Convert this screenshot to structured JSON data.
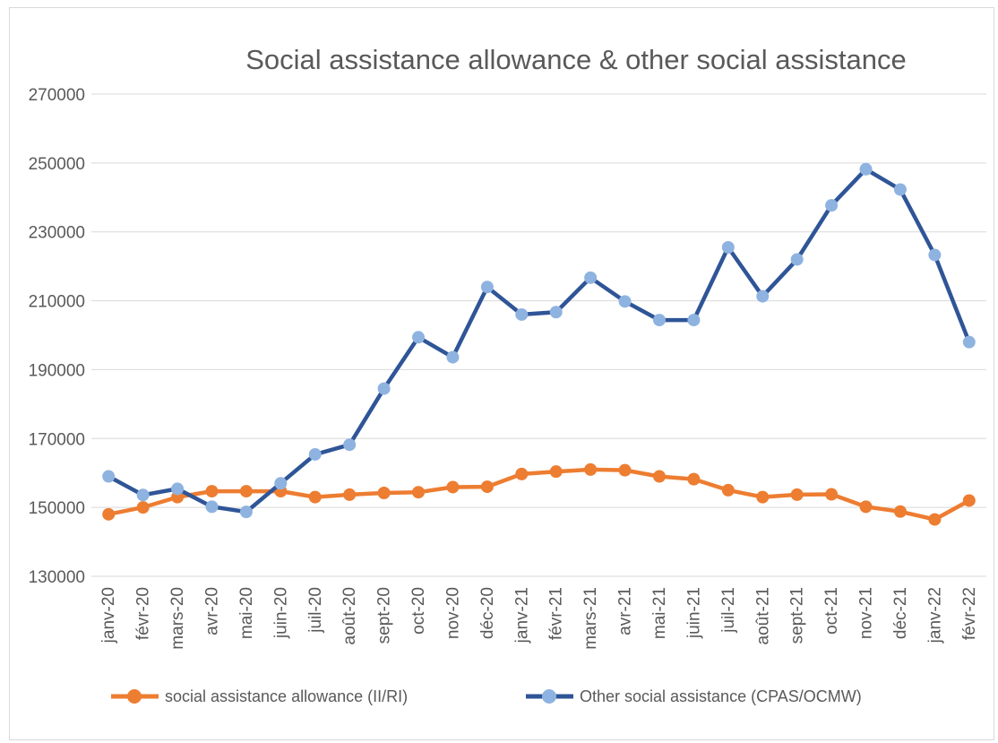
{
  "chart_data": {
    "type": "line",
    "title": "Social assistance allowance & other social assistance",
    "categories": [
      "janv-20",
      "févr-20",
      "mars-20",
      "avr-20",
      "mai-20",
      "juin-20",
      "juil-20",
      "août-20",
      "sept-20",
      "oct-20",
      "nov-20",
      "déc-20",
      "janv-21",
      "févr-21",
      "mars-21",
      "avr-21",
      "mai-21",
      "juin-21",
      "juil-21",
      "août-21",
      "sept-21",
      "oct-21",
      "nov-21",
      "déc-21",
      "janv-22",
      "févr-22"
    ],
    "y_ticks": [
      "130000",
      "150000",
      "170000",
      "190000",
      "210000",
      "230000",
      "250000",
      "270000"
    ],
    "ylim": [
      130000,
      270000
    ],
    "grid": true,
    "legend_position": "bottom",
    "series": [
      {
        "name": "social assistance allowance (II/RI)",
        "line_color": "#ed7d31",
        "marker_color": "#ed7d31",
        "values": [
          148000,
          150000,
          153000,
          154700,
          154700,
          154700,
          153000,
          153700,
          154200,
          154400,
          155900,
          156000,
          159700,
          160400,
          161000,
          160800,
          159000,
          158200,
          155000,
          153000,
          153700,
          153800,
          150200,
          148800,
          146500,
          152000
        ]
      },
      {
        "name": "Other social assistance (CPAS/OCMW)",
        "line_color": "#2f5597",
        "marker_color": "#8fb3e0",
        "values": [
          159000,
          153600,
          155400,
          150200,
          148700,
          157000,
          165400,
          168200,
          184500,
          199400,
          193600,
          214000,
          206000,
          206700,
          216700,
          209800,
          204400,
          204400,
          225500,
          211300,
          222000,
          237700,
          248200,
          242300,
          223300,
          198000
        ]
      }
    ]
  }
}
